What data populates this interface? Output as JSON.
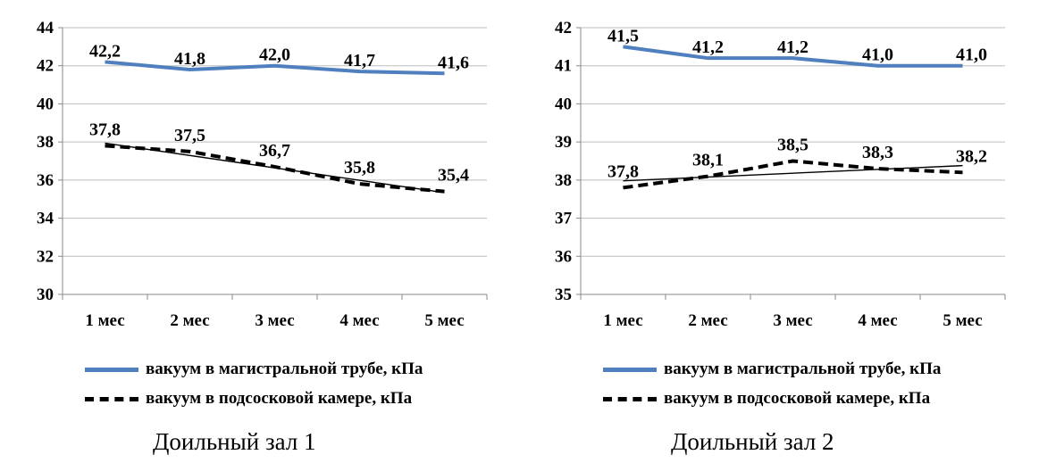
{
  "chart_data": [
    {
      "type": "line",
      "title": "Доильный зал 1",
      "categories": [
        "1 мес",
        "2 мес",
        "3 мес",
        "4 мес",
        "5 мес"
      ],
      "ylim": [
        30,
        44
      ],
      "yticks": [
        30,
        32,
        34,
        36,
        38,
        40,
        42,
        44
      ],
      "grid": true,
      "legend_position": "bottom",
      "series": [
        {
          "name": "вакуум в магистральной трубе, кПа",
          "values": [
            42.2,
            41.8,
            42.0,
            41.7,
            41.6
          ],
          "labels": [
            "42,2",
            "41,8",
            "42,0",
            "41,7",
            "41,6"
          ],
          "color": "#4F7FBF",
          "style": "solid"
        },
        {
          "name": "вакуум в подсосковой камере, кПа",
          "values": [
            37.8,
            37.5,
            36.7,
            35.8,
            35.4
          ],
          "labels": [
            "37,8",
            "37,5",
            "36,7",
            "35,8",
            "35,4"
          ],
          "color": "#000000",
          "style": "dashed",
          "trendline": true
        }
      ]
    },
    {
      "type": "line",
      "title": "Доильный зал 2",
      "categories": [
        "1 мес",
        "2 мес",
        "3 мес",
        "4 мес",
        "5 мес"
      ],
      "ylim": [
        35,
        42
      ],
      "yticks": [
        35,
        36,
        37,
        38,
        39,
        40,
        41,
        42
      ],
      "grid": true,
      "legend_position": "bottom",
      "series": [
        {
          "name": "вакуум в магистральной трубе, кПа",
          "values": [
            41.5,
            41.2,
            41.2,
            41.0,
            41.0
          ],
          "labels": [
            "41,5",
            "41,2",
            "41,2",
            "41,0",
            "41,0"
          ],
          "color": "#4F7FBF",
          "style": "solid"
        },
        {
          "name": "вакуум в подсосковой камере, кПа",
          "values": [
            37.8,
            38.1,
            38.5,
            38.3,
            38.2
          ],
          "labels": [
            "37,8",
            "38,1",
            "38,5",
            "38,3",
            "38,2"
          ],
          "color": "#000000",
          "style": "dashed",
          "trendline": true
        }
      ]
    }
  ]
}
